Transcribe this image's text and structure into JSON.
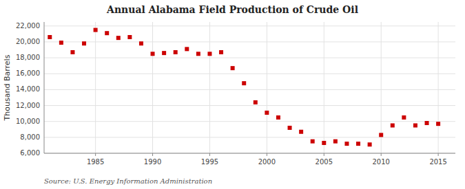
{
  "chart_data": {
    "type": "scatter",
    "title": "Annual Alabama Field Production of Crude Oil",
    "ylabel": "Thousand Barrels",
    "source": "Source: U.S. Energy Information Administration",
    "x": [
      1981,
      1982,
      1983,
      1984,
      1985,
      1986,
      1987,
      1988,
      1989,
      1990,
      1991,
      1992,
      1993,
      1994,
      1995,
      1996,
      1997,
      1998,
      1999,
      2000,
      2001,
      2002,
      2003,
      2004,
      2005,
      2006,
      2007,
      2008,
      2009,
      2010,
      2011,
      2012,
      2013,
      2014,
      2015
    ],
    "values": [
      20600,
      19900,
      18700,
      19800,
      21500,
      21100,
      20500,
      20600,
      19800,
      18500,
      18600,
      18700,
      19100,
      18500,
      18500,
      18700,
      16700,
      14800,
      12400,
      11100,
      10500,
      9200,
      8700,
      7500,
      7300,
      7500,
      7200,
      7200,
      7100,
      8300,
      9500,
      10500,
      9500,
      9800,
      9700
    ],
    "color": "#cc0000",
    "marker": "square",
    "xlim": [
      1980.5,
      2016.5
    ],
    "ylim": [
      6000,
      22500
    ],
    "xticks": [
      1985,
      1990,
      1995,
      2000,
      2005,
      2010,
      2015
    ],
    "yticks": [
      {
        "value": 6000,
        "label": "6,000"
      },
      {
        "value": 8000,
        "label": "8,000"
      },
      {
        "value": 10000,
        "label": "10,000"
      },
      {
        "value": 12000,
        "label": "12,000"
      },
      {
        "value": 14000,
        "label": "14,000"
      },
      {
        "value": 16000,
        "label": "16,000"
      },
      {
        "value": 18000,
        "label": "18,000"
      },
      {
        "value": 20000,
        "label": "20,000"
      },
      {
        "value": 22000,
        "label": "22,000"
      }
    ],
    "grid": true
  }
}
